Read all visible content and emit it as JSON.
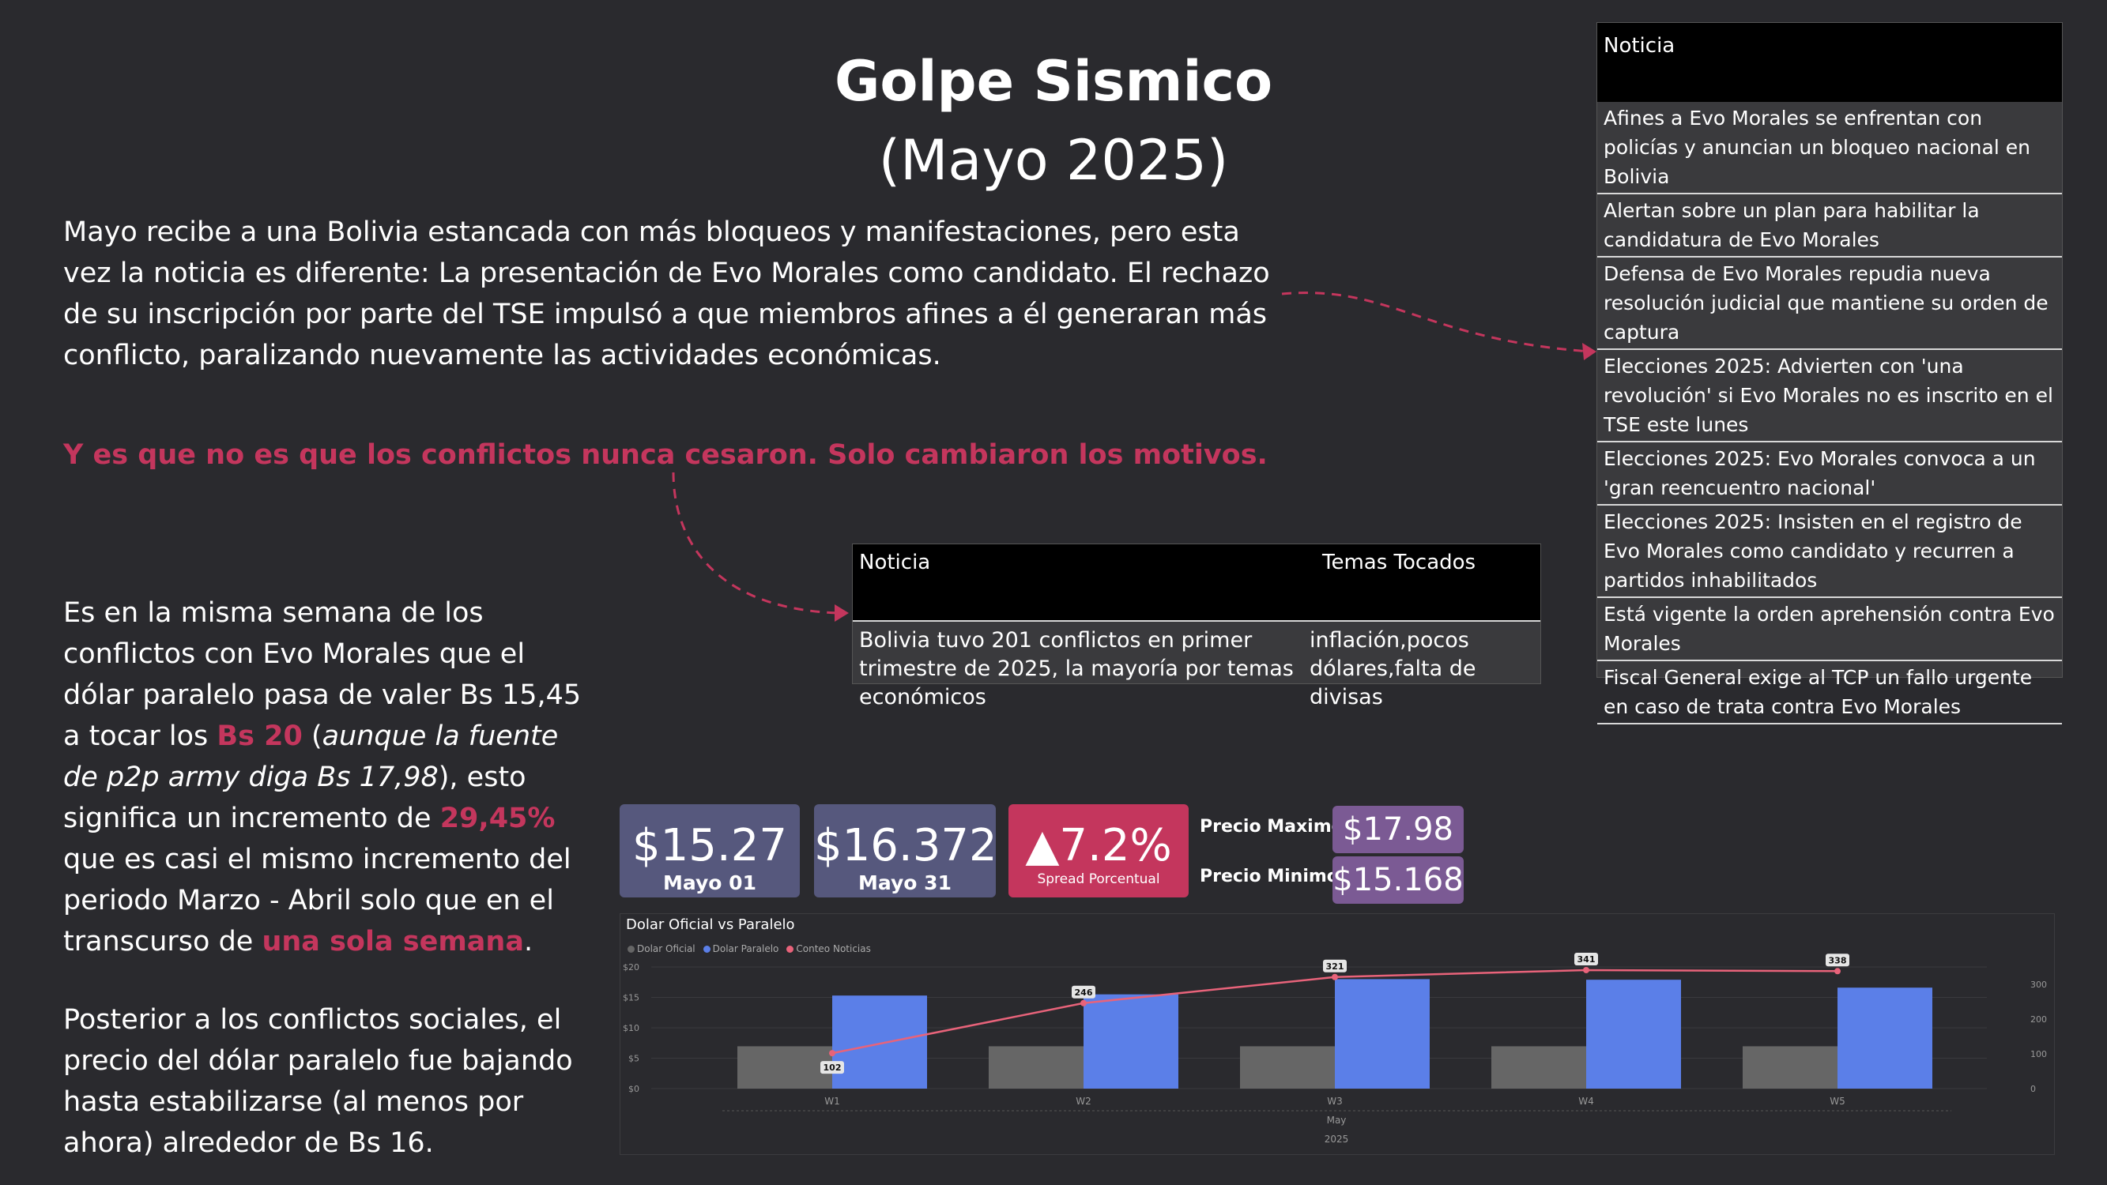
{
  "title": {
    "line1": "Golpe Sismico",
    "line2": "(Mayo 2025)"
  },
  "intro": "Mayo recibe a una Bolivia estancada con más bloqueos y manifestaciones, pero esta vez la noticia es diferente: La presentación de Evo Morales como candidato. El rechazo de su inscripción por parte del TSE impulsó a que miembros afines a él generaran más conflicto, paralizando nuevamente las actividades económicas.",
  "quote": "Y es que no es que los conflictos nunca cesaron. Solo cambiaron los motivos.",
  "para2": {
    "a": "Es en la misma semana de los conflictos con Evo Morales que el dólar paralelo pasa de valer Bs 15,45 a tocar los ",
    "b": "Bs 20",
    "c": " (",
    "d": "aunque la fuente de p2p army diga Bs 17,98",
    "e": "), esto significa un incremento de ",
    "f": "29,45%",
    "g": " que es casi el mismo incremento del periodo Marzo - Abril solo que en el transcurso de ",
    "h": "una sola semana",
    "i": "."
  },
  "para3": "Posterior a los conflictos sociales, el precio del dólar paralelo fue bajando hasta estabilizarse (al menos por ahora) alrededor de Bs 16.",
  "news_table": {
    "header": "Noticia",
    "rows": [
      "Afines a Evo Morales se enfrentan con policías y anuncian un bloqueo nacional en Bolivia",
      "Alertan sobre un plan para habilitar la candidatura de Evo Morales",
      "Defensa de Evo Morales repudia nueva resolución judicial que mantiene su orden de captura",
      "Elecciones 2025: Advierten con 'una revolución' si Evo Morales no es inscrito en el TSE este lunes",
      "Elecciones 2025: Evo Morales convoca a un 'gran reencuentro nacional'",
      "Elecciones 2025: Insisten en el registro de Evo Morales como candidato y recurren a partidos inhabilitados",
      "Está vigente la orden aprehensión contra Evo Morales",
      "Fiscal General exige al TCP un fallo urgente en caso de trata contra Evo Morales"
    ]
  },
  "topics_table": {
    "header_news": "Noticia",
    "header_topics": "Temas Tocados",
    "news": "Bolivia tuvo 201 conflictos en primer trimestre de 2025, la mayoría por temas económicos",
    "topics": "inflación,pocos dólares,falta de divisas"
  },
  "kpis": {
    "start": {
      "value": "$15.27",
      "label": "Mayo 01"
    },
    "end": {
      "value": "$16.372",
      "label": "Mayo 31"
    },
    "spread": {
      "value": "▲7.2%",
      "label": "Spread Porcentual"
    },
    "max_label": "Precio Maximo",
    "max_value": "$17.98",
    "min_label": "Precio Minimo",
    "min_value": "$15.168"
  },
  "colors": {
    "accent": "#c4365d",
    "oficial": "#666666",
    "paralelo": "#5b7fe8",
    "noticias": "#e8637a",
    "kpi_card": "#56587d",
    "pill": "#7b5a94"
  },
  "chart_data": {
    "type": "bar",
    "title": "Dolar Oficial vs Paralelo",
    "categories": [
      "W1",
      "W2",
      "W3",
      "W4",
      "W5"
    ],
    "x_group_label": "May",
    "x_year_label": "2025",
    "series": [
      {
        "name": "Dolar Oficial",
        "type": "bar",
        "axis": "left",
        "values": [
          6.96,
          6.96,
          6.96,
          6.96,
          6.96
        ]
      },
      {
        "name": "Dolar Paralelo",
        "type": "bar",
        "axis": "left",
        "values": [
          15.3,
          15.5,
          18.0,
          17.9,
          16.6
        ]
      },
      {
        "name": "Conteo Noticias",
        "type": "line",
        "axis": "right",
        "values": [
          102,
          246,
          321,
          341,
          338
        ]
      }
    ],
    "y_left_ticks": [
      "$0",
      "$5",
      "$10",
      "$15",
      "$20"
    ],
    "y_left_lim": [
      0,
      20
    ],
    "y_right_ticks": [
      "0",
      "100",
      "200",
      "300"
    ],
    "y_right_lim": [
      0,
      350
    ]
  }
}
